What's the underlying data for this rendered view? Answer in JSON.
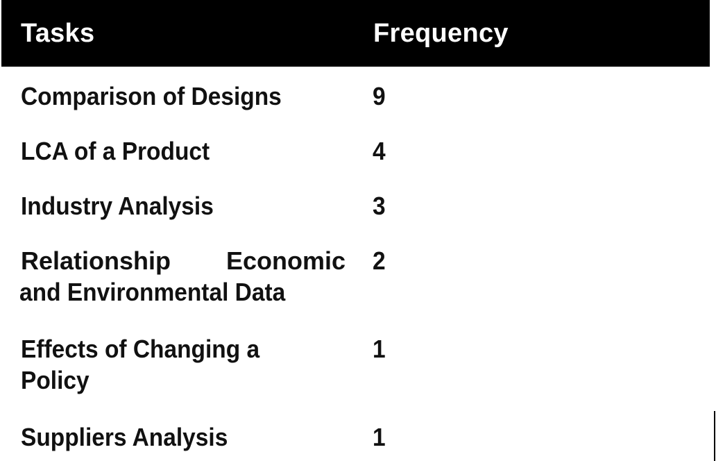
{
  "table": {
    "headers": {
      "tasks": "Tasks",
      "frequency": "Frequency"
    },
    "rows": [
      {
        "task": "Comparison of Designs",
        "frequency": "9"
      },
      {
        "task": "LCA of a Product",
        "frequency": "4"
      },
      {
        "task": "Industry Analysis",
        "frequency": "3"
      },
      {
        "task_line1": "Relationship Economic",
        "task_line2": "and Environmental Data",
        "frequency": "2"
      },
      {
        "task_line1": "Effects of Changing a",
        "task_line2": "Policy",
        "frequency": "1"
      },
      {
        "task": "Suppliers Analysis",
        "frequency": "1"
      }
    ]
  },
  "colors": {
    "header_background": "#000000",
    "header_text": "#ffffff",
    "body_text": "#111111"
  }
}
